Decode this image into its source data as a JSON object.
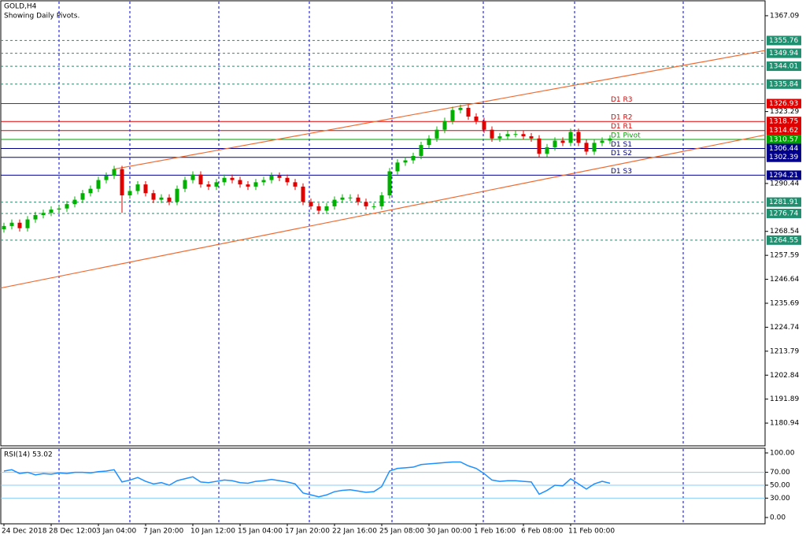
{
  "chart_data": {
    "type": "candlestick",
    "title": "GOLD,H4",
    "subtitle": "Showing Daily Pivots.",
    "up_color": "#00b000",
    "down_color": "#e00000",
    "open": [
      1269.5,
      1271,
      1272.5,
      1270,
      1274,
      1276,
      1277,
      1278.5,
      1279,
      1281,
      1283,
      1286,
      1288,
      1292,
      1294,
      1297,
      1285,
      1287,
      1290,
      1286,
      1283,
      1284,
      1282,
      1288,
      1292,
      1294.5,
      1290,
      1289,
      1291,
      1293,
      1292,
      1290,
      1289,
      1291,
      1292,
      1294,
      1293,
      1291,
      1289,
      1282,
      1280,
      1278,
      1280,
      1283,
      1284,
      1284,
      1282,
      1280,
      1280,
      1285,
      1296,
      1300,
      1301,
      1303,
      1308,
      1311,
      1315,
      1319,
      1324,
      1325,
      1321,
      1319,
      1315,
      1311,
      1312,
      1313,
      1313,
      1312,
      1311,
      1304,
      1307,
      1310,
      1309,
      1314,
      1309,
      1305,
      1309,
      1310
    ],
    "high": [
      1272.5,
      1274,
      1274,
      1275.5,
      1277.5,
      1278.5,
      1280,
      1280.5,
      1282.5,
      1284.5,
      1287.5,
      1289.5,
      1293.5,
      1295.5,
      1298.5,
      1298.5,
      1288.5,
      1291.5,
      1291.5,
      1287.5,
      1285.5,
      1285.5,
      1289.5,
      1293.5,
      1296,
      1296,
      1291.5,
      1292.5,
      1294.5,
      1294.5,
      1293.5,
      1291.5,
      1292.5,
      1293.5,
      1295.5,
      1295.5,
      1294.5,
      1292.5,
      1290.5,
      1283.5,
      1281.5,
      1281.5,
      1284.5,
      1285.5,
      1285.5,
      1285.5,
      1283.5,
      1281.5,
      1286.5,
      1297.5,
      1301.5,
      1302.5,
      1304.5,
      1309.5,
      1312.5,
      1316.5,
      1320.5,
      1325.5,
      1326.5,
      1326.5,
      1322.5,
      1320.5,
      1316.5,
      1313.5,
      1314.5,
      1314.5,
      1314.5,
      1313.5,
      1312.5,
      1308.5,
      1311.5,
      1311.5,
      1315.5,
      1315.5,
      1310.5,
      1310.5,
      1311.5,
      1312.5
    ],
    "low": [
      1268,
      1269.5,
      1268.5,
      1268.5,
      1272.5,
      1274.5,
      1275.5,
      1277,
      1277.5,
      1279.5,
      1281.5,
      1284.5,
      1286.5,
      1290.5,
      1292.5,
      1277,
      1283.5,
      1285.5,
      1284.5,
      1281.5,
      1281.5,
      1280.5,
      1280.5,
      1286.5,
      1290.5,
      1288.5,
      1287.5,
      1287.5,
      1289.5,
      1290.5,
      1288.5,
      1287.5,
      1287.5,
      1289.5,
      1290.5,
      1291.5,
      1289.5,
      1287.5,
      1280.5,
      1278.5,
      1276.5,
      1276.5,
      1278.5,
      1281.5,
      1282.5,
      1280.5,
      1278.5,
      1278.5,
      1278.5,
      1283.5,
      1294.5,
      1298.5,
      1299.5,
      1301.5,
      1306.5,
      1309.5,
      1313.5,
      1317.5,
      1322.5,
      1319.5,
      1317.5,
      1313.5,
      1309.5,
      1309.5,
      1310.5,
      1311.5,
      1310.5,
      1309.5,
      1302.5,
      1302.5,
      1305.5,
      1307.5,
      1307.5,
      1307.5,
      1303.5,
      1303.5,
      1307.5,
      1308.5
    ],
    "close": [
      1271,
      1272.5,
      1270,
      1274,
      1276,
      1277,
      1278.5,
      1279,
      1281,
      1283,
      1286,
      1288,
      1292,
      1294,
      1297,
      1285,
      1287,
      1290,
      1286,
      1283,
      1284,
      1282,
      1288,
      1292,
      1294.5,
      1290,
      1289,
      1291,
      1293,
      1292,
      1290,
      1289,
      1291,
      1292,
      1294,
      1293,
      1291,
      1289,
      1282,
      1280,
      1278,
      1280,
      1283,
      1284,
      1284,
      1282,
      1280,
      1280,
      1285,
      1296,
      1300,
      1301,
      1303,
      1308,
      1311,
      1315,
      1319,
      1324,
      1325,
      1321,
      1319,
      1315,
      1311,
      1312,
      1313,
      1313,
      1312,
      1311,
      1304,
      1307,
      1310,
      1309,
      1314,
      1309,
      1305,
      1309,
      1310,
      1311
    ],
    "ylim": [
      1170.54,
      1373.55
    ],
    "yticks": [
      1367.09,
      1323.29,
      1290.44,
      1268.54,
      1257.59,
      1246.64,
      1235.69,
      1224.74,
      1213.79,
      1202.84,
      1191.89,
      1180.94
    ],
    "xticks": [
      {
        "value": 0,
        "label": "24 Dec 2018"
      },
      {
        "value": 6,
        "label": "28 Dec 12:00"
      },
      {
        "value": 12,
        "label": "3 Jan 04:00"
      },
      {
        "value": 18,
        "label": "7 Jan 20:00"
      },
      {
        "value": 24,
        "label": "10 Jan 12:00"
      },
      {
        "value": 30,
        "label": "15 Jan 04:00"
      },
      {
        "value": 36,
        "label": "17 Jan 20:00"
      },
      {
        "value": 42,
        "label": "22 Jan 16:00"
      },
      {
        "value": 48,
        "label": "25 Jan 08:00"
      },
      {
        "value": 54,
        "label": "30 Jan 00:00"
      },
      {
        "value": 60,
        "label": "1 Feb 16:00"
      },
      {
        "value": 66,
        "label": "6 Feb 08:00"
      },
      {
        "value": 72,
        "label": "11 Feb 00:00"
      }
    ],
    "levels": [
      {
        "value": 1355.76,
        "color": "#1f8f6f",
        "style": "dashed"
      },
      {
        "value": 1349.94,
        "color": "#1f8f6f",
        "style": "dashed"
      },
      {
        "value": 1344.01,
        "color": "#1f8f6f",
        "style": "dashed"
      },
      {
        "value": 1335.84,
        "color": "#1f8f6f",
        "style": "dashed"
      },
      {
        "value": 1326.93,
        "color": "#e00000",
        "style": "solid",
        "name": "D1 R3"
      },
      {
        "value": 1318.75,
        "color": "#e00000",
        "style": "solid",
        "name": "D1 R2"
      },
      {
        "value": 1314.62,
        "color": "#e00000",
        "style": "solid",
        "name": "D1 R1"
      },
      {
        "value": 1310.57,
        "color": "#00a000",
        "style": "solid",
        "name": "D1 Pivot"
      },
      {
        "value": 1306.44,
        "color": "#00008b",
        "style": "solid",
        "name": "D1 S1"
      },
      {
        "value": 1302.39,
        "color": "#00008b",
        "style": "solid",
        "name": "D1 S2"
      },
      {
        "value": 1294.21,
        "color": "#00008b",
        "style": "solid",
        "name": "D1 S3"
      },
      {
        "value": 1281.91,
        "color": "#1f8f6f",
        "style": "dashed"
      },
      {
        "value": 1276.74,
        "color": "#1f8f6f",
        "style": "dashed"
      },
      {
        "value": 1264.55,
        "color": "#1f8f6f",
        "style": "dashed"
      }
    ],
    "trendlines": [
      {
        "color": "#f06a30",
        "points": [
          [
            14,
            1297
          ],
          [
            96.7,
            1351.2
          ]
        ]
      },
      {
        "color": "#f06a30",
        "points": [
          [
            -0.5,
            1242.6
          ],
          [
            96.7,
            1312.6
          ]
        ]
      }
    ],
    "rsi": {
      "label": "RSI(14) 53.02",
      "color": "#1e90ff",
      "values": [
        72,
        74,
        68,
        70,
        66,
        68,
        67,
        69,
        68,
        70,
        70,
        69,
        71,
        72,
        74,
        55,
        58,
        62,
        56,
        52,
        54,
        50,
        57,
        60,
        63,
        55,
        54,
        56,
        58,
        57,
        54,
        53,
        56,
        57,
        59,
        57,
        55,
        52,
        38,
        35,
        32,
        35,
        40,
        42,
        43,
        41,
        39,
        40,
        48,
        72,
        76,
        77,
        78,
        82,
        83,
        84,
        85,
        86,
        86,
        80,
        76,
        68,
        58,
        56,
        57,
        57,
        56,
        55,
        36,
        42,
        50,
        49,
        60,
        52,
        44,
        52,
        56,
        53
      ],
      "ylim": [
        -9.8,
        106.1
      ],
      "yticks": [
        {
          "value": 100,
          "label": "100.00"
        },
        {
          "value": 70,
          "label": "70.00"
        },
        {
          "value": 50,
          "label": "50.00"
        },
        {
          "value": 30,
          "label": "30.00"
        },
        {
          "value": 0,
          "label": "0.00"
        }
      ],
      "lines": [
        70,
        50,
        30
      ]
    }
  }
}
